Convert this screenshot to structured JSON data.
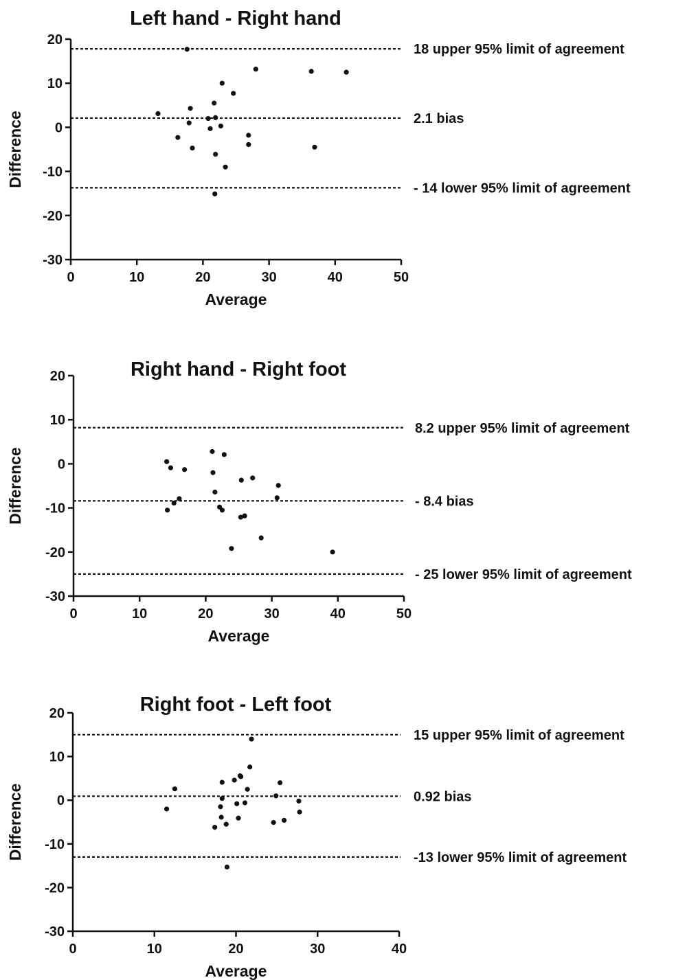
{
  "chart_data": [
    {
      "type": "scatter",
      "title": "Left hand - Right hand",
      "xlabel": "Average",
      "ylabel": "Difference",
      "xlim": [
        0,
        50
      ],
      "ylim": [
        -30,
        20
      ],
      "xticks": [
        "0",
        "10",
        "20",
        "30",
        "40",
        "50"
      ],
      "yticks": [
        "20",
        "10",
        "0",
        "-10",
        "-20",
        "-30"
      ],
      "grid": false,
      "reference_lines": [
        {
          "value": 17.8,
          "label": "18 upper 95% limit of agreement"
        },
        {
          "value": 2.1,
          "label": "2.1 bias"
        },
        {
          "value": -13.7,
          "label": "- 14 lower 95% limit of agreement"
        }
      ],
      "points": [
        [
          17.6,
          17.7
        ],
        [
          28.0,
          13.2
        ],
        [
          36.4,
          12.7
        ],
        [
          41.7,
          12.5
        ],
        [
          22.9,
          10.0
        ],
        [
          24.6,
          7.7
        ],
        [
          21.7,
          5.5
        ],
        [
          18.1,
          4.3
        ],
        [
          13.2,
          3.1
        ],
        [
          21.9,
          2.2
        ],
        [
          20.8,
          2.0
        ],
        [
          17.9,
          1.0
        ],
        [
          22.7,
          0.3
        ],
        [
          21.1,
          -0.3
        ],
        [
          26.9,
          -1.8
        ],
        [
          16.2,
          -2.3
        ],
        [
          26.9,
          -3.9
        ],
        [
          18.4,
          -4.7
        ],
        [
          36.9,
          -4.5
        ],
        [
          21.9,
          -6.1
        ],
        [
          23.4,
          -9.0
        ],
        [
          21.8,
          -15.1
        ]
      ]
    },
    {
      "type": "scatter",
      "title": "Right hand - Right foot",
      "xlabel": "Average",
      "ylabel": "Difference",
      "xlim": [
        0,
        50
      ],
      "ylim": [
        -30,
        20
      ],
      "xticks": [
        "0",
        "10",
        "20",
        "30",
        "40",
        "50"
      ],
      "yticks": [
        "20",
        "10",
        "0",
        "-10",
        "-20",
        "-30"
      ],
      "grid": false,
      "reference_lines": [
        {
          "value": 8.2,
          "label": "8.2 upper 95% limit of agreement"
        },
        {
          "value": -8.4,
          "label": "- 8.4 bias"
        },
        {
          "value": -25.0,
          "label": "- 25 lower 95% limit of agreement"
        }
      ],
      "points": [
        [
          21.0,
          2.8
        ],
        [
          22.8,
          2.1
        ],
        [
          14.1,
          0.5
        ],
        [
          14.7,
          -0.9
        ],
        [
          16.8,
          -1.3
        ],
        [
          21.1,
          -2.0
        ],
        [
          27.1,
          -3.2
        ],
        [
          25.4,
          -3.7
        ],
        [
          31.0,
          -4.9
        ],
        [
          21.4,
          -6.4
        ],
        [
          30.8,
          -7.7
        ],
        [
          16.0,
          -7.9
        ],
        [
          15.2,
          -8.9
        ],
        [
          22.1,
          -9.8
        ],
        [
          22.5,
          -10.5
        ],
        [
          14.2,
          -10.5
        ],
        [
          25.9,
          -11.8
        ],
        [
          25.3,
          -12.1
        ],
        [
          28.4,
          -16.8
        ],
        [
          23.9,
          -19.2
        ],
        [
          39.2,
          -20.0
        ]
      ]
    },
    {
      "type": "scatter",
      "title": "Right foot - Left foot",
      "xlabel": "Average",
      "ylabel": "Difference",
      "xlim": [
        0,
        40
      ],
      "ylim": [
        -30,
        20
      ],
      "xticks": [
        "0",
        "10",
        "20",
        "30",
        "40"
      ],
      "yticks": [
        "20",
        "10",
        "0",
        "-10",
        "-20",
        "-30"
      ],
      "grid": false,
      "reference_lines": [
        {
          "value": 15.0,
          "label": "15 upper 95% limit of agreement"
        },
        {
          "value": 0.92,
          "label": "0.92 bias"
        },
        {
          "value": -13.0,
          "label": "-13 lower 95% limit of agreement"
        }
      ],
      "points": [
        [
          21.9,
          14.0
        ],
        [
          21.7,
          7.6
        ],
        [
          20.5,
          5.6
        ],
        [
          20.6,
          5.4
        ],
        [
          19.8,
          4.6
        ],
        [
          18.3,
          4.1
        ],
        [
          25.4,
          4.0
        ],
        [
          12.5,
          2.6
        ],
        [
          21.4,
          2.5
        ],
        [
          24.9,
          1.0
        ],
        [
          18.3,
          0.4
        ],
        [
          27.7,
          -0.2
        ],
        [
          21.1,
          -0.6
        ],
        [
          20.1,
          -0.8
        ],
        [
          18.1,
          -1.5
        ],
        [
          11.5,
          -2.0
        ],
        [
          27.8,
          -2.7
        ],
        [
          18.2,
          -3.9
        ],
        [
          20.3,
          -4.1
        ],
        [
          25.9,
          -4.6
        ],
        [
          24.6,
          -5.1
        ],
        [
          18.8,
          -5.5
        ],
        [
          17.4,
          -6.2
        ],
        [
          18.9,
          -15.3
        ]
      ]
    }
  ]
}
